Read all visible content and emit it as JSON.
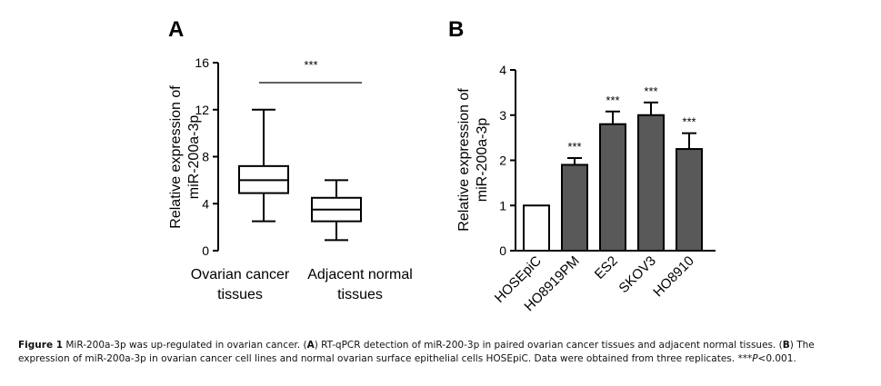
{
  "chart_data": [
    {
      "panel": "A",
      "type": "boxplot",
      "ylabel_line1": "Relative expression of",
      "ylabel_line2": "miR-200a-3p",
      "ylim": [
        0,
        16
      ],
      "yticks": [
        "0",
        "4",
        "8",
        "12",
        "16"
      ],
      "categories": [
        {
          "line1": "Ovarian cancer",
          "line2": "tissues"
        },
        {
          "line1": "Adjacent normal",
          "line2": "tissues"
        }
      ],
      "boxes": [
        {
          "min": 2.5,
          "q1": 4.9,
          "median": 6.0,
          "q3": 7.2,
          "max": 12.0
        },
        {
          "min": 0.9,
          "q1": 2.5,
          "median": 3.5,
          "q3": 4.5,
          "max": 6.0
        }
      ],
      "significance": "***"
    },
    {
      "panel": "B",
      "type": "bar",
      "ylabel_line1": "Relative expression of",
      "ylabel_line2": "miR-200a-3p",
      "ylim": [
        0,
        4
      ],
      "yticks": [
        "0",
        "1",
        "2",
        "3",
        "4"
      ],
      "categories": [
        "HOSEpiC",
        "HO8919PM",
        "ES2",
        "SKOV3",
        "HO8910"
      ],
      "values": [
        1.0,
        1.9,
        2.8,
        3.0,
        2.25
      ],
      "errors": [
        0,
        0.15,
        0.28,
        0.28,
        0.35
      ],
      "annotations": [
        "",
        "***",
        "***",
        "***",
        "***"
      ],
      "colors": [
        "#ffffff",
        "#595959",
        "#595959",
        "#595959",
        "#595959"
      ]
    }
  ],
  "caption": {
    "prefix": "Figure 1",
    "text1": " MiR-200a-3p was up-regulated in ovarian cancer. (",
    "a": "A",
    "text2": ") RT-qPCR detection of miR-200-3p in paired ovarian cancer tissues and adjacent normal tissues. (",
    "b": "B",
    "text3": ") The expression of miR-200a-3p in ovarian cancer cell lines and normal ovarian surface epithelial cells HOSEpiC. Data were obtained from three replicates. ***",
    "p": "P",
    "text4": "<0.001."
  }
}
